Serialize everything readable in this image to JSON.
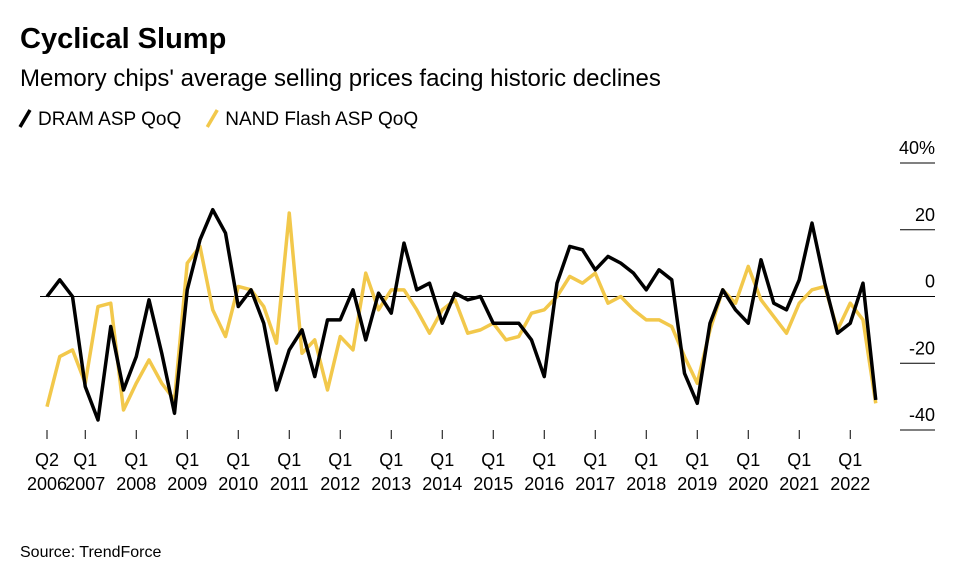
{
  "chart_data": {
    "type": "line",
    "title": "Cyclical Slump",
    "subtitle": "Memory chips' average selling prices facing historic declines",
    "source": "Source: TrendForce",
    "categories": [
      "Q2\n2006",
      null,
      null,
      "Q1\n2007",
      null,
      null,
      null,
      "Q1\n2008",
      null,
      null,
      null,
      "Q1\n2009",
      null,
      null,
      null,
      "Q1\n2010",
      null,
      null,
      null,
      "Q1\n2011",
      null,
      null,
      null,
      "Q1\n2012",
      null,
      null,
      null,
      "Q1\n2013",
      null,
      null,
      null,
      "Q1\n2014",
      null,
      null,
      null,
      "Q1\n2015",
      null,
      null,
      null,
      "Q1\n2016",
      null,
      null,
      null,
      "Q1\n2017",
      null,
      null,
      null,
      "Q1\n2018",
      null,
      null,
      null,
      "Q1\n2019",
      null,
      null,
      null,
      "Q1\n2020",
      null,
      null,
      null,
      "Q1\n2021",
      null,
      null,
      null,
      "Q1\n2022",
      null,
      null
    ],
    "series": [
      {
        "name": "DRAM ASP QoQ",
        "color": "#000000",
        "values": [
          0,
          5,
          0,
          -27,
          -37,
          -9,
          -28,
          -18,
          -1,
          -17,
          -35,
          2,
          17,
          26,
          19,
          -3,
          2,
          -8,
          -28,
          -16,
          -10,
          -24,
          -7,
          -7,
          2,
          -13,
          1,
          -5,
          16,
          2,
          4,
          -8,
          1,
          -1,
          0,
          -8,
          -8,
          -8,
          -13,
          -24,
          4,
          15,
          14,
          8,
          12,
          10,
          7,
          2,
          8,
          5,
          -23,
          -32,
          -8,
          2,
          -4,
          -8,
          11,
          -2,
          -4,
          5,
          22,
          4,
          -11,
          -8,
          4,
          -31
        ]
      },
      {
        "name": "NAND Flash ASP QoQ",
        "color": "#f2c84b",
        "values": [
          -33,
          -18,
          -16,
          -26,
          -3,
          -2,
          -34,
          -26,
          -19,
          -26,
          -31,
          10,
          15,
          -4,
          -12,
          3,
          2,
          -3,
          -14,
          25,
          -17,
          -13,
          -28,
          -12,
          -16,
          7,
          -4,
          2,
          2,
          -4,
          -11,
          -4,
          -1,
          -11,
          -10,
          -8,
          -13,
          -12,
          -5,
          -4,
          0,
          6,
          4,
          7,
          -2,
          0,
          -4,
          -7,
          -7,
          -9,
          -18,
          -26,
          -10,
          2,
          -2,
          9,
          -1,
          -6,
          -11,
          -2,
          2,
          3,
          -10,
          -2,
          -7,
          -32
        ]
      }
    ],
    "ylim": [
      -40,
      40
    ],
    "yticks": [
      {
        "value": 40,
        "label": "40%"
      },
      20,
      0,
      -20,
      -40
    ]
  }
}
